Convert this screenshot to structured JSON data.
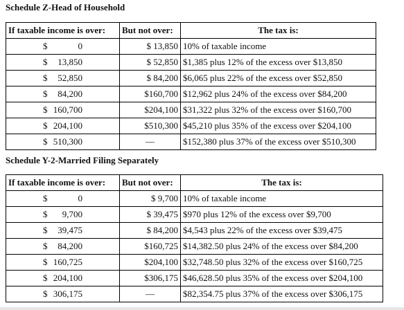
{
  "schedules": [
    {
      "title": "Schedule Z-Head of Household",
      "headers": [
        "If taxable income is over:",
        "But not over:",
        "The tax is:"
      ],
      "rows": [
        {
          "over": "$          0",
          "not_over": "$ 13,850",
          "tax": "10% of taxable income"
        },
        {
          "over": "$ 13,850",
          "not_over": "$ 52,850",
          "tax": "$1,385 plus 12% of the excess over $13,850"
        },
        {
          "over": "$ 52,850",
          "not_over": "$ 84,200",
          "tax": "$6,065 plus 22% of the excess over $52,850"
        },
        {
          "over": "$ 84,200",
          "not_over": "$160,700",
          "tax": "$12,962 plus 24% of the excess over $84,200"
        },
        {
          "over": "$160,700",
          "not_over": "$204,100",
          "tax": "$31,322 plus 32% of the excess over $160,700"
        },
        {
          "over": "$204,100",
          "not_over": "$510,300",
          "tax": "$45,210 plus 35% of the excess over $204,100"
        },
        {
          "over": "$510,300",
          "not_over": "—",
          "tax": "$152,380 plus 37% of the excess over $510,300"
        }
      ]
    },
    {
      "title": "Schedule Y-2-Married Filing Separately",
      "headers": [
        "If taxable income is over:",
        "But not over:",
        "The tax is:"
      ],
      "rows": [
        {
          "over": "$          0",
          "not_over": "$  9,700",
          "tax": "10% of taxable income"
        },
        {
          "over": "$  9,700",
          "not_over": "$ 39,475",
          "tax": "$970 plus 12% of the excess over $9,700"
        },
        {
          "over": "$ 39,475",
          "not_over": "$ 84,200",
          "tax": "$4,543 plus 22% of the excess over $39,475"
        },
        {
          "over": "$ 84,200",
          "not_over": "$160,725",
          "tax": "$14,382.50 plus 24% of the excess over $84,200"
        },
        {
          "over": "$160,725",
          "not_over": "$204,100",
          "tax": "$32,748.50 plus 32% of the excess over $160,725"
        },
        {
          "over": "$204,100",
          "not_over": "$306,175",
          "tax": "$46,628.50 plus 35% of the excess over $204,100"
        },
        {
          "over": "$306,175",
          "not_over": "—",
          "tax": "$82,354.75 plus 37% of the excess over $306,175"
        }
      ]
    }
  ]
}
